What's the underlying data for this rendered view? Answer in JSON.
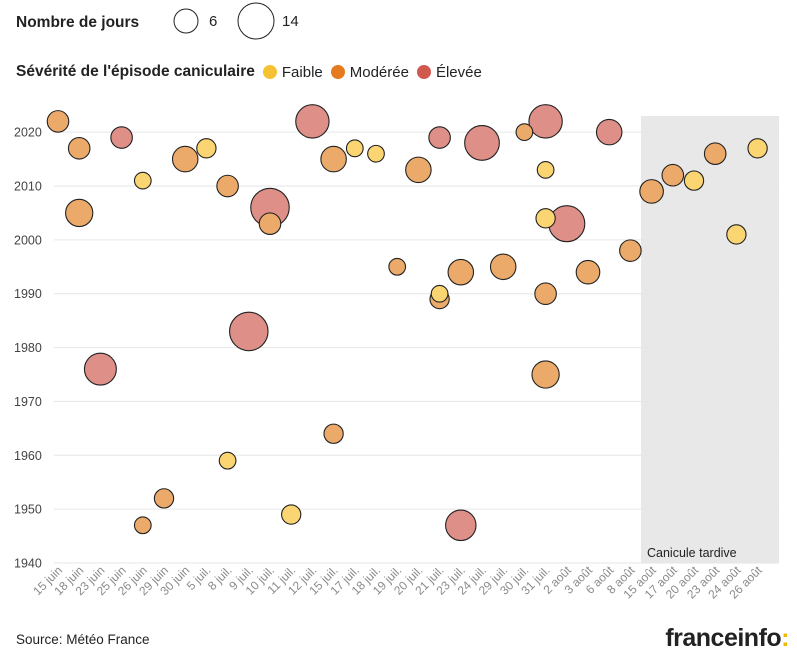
{
  "legend_size": {
    "title": "Nombre de jours",
    "small_label": "6",
    "small_value": 6,
    "large_label": "14",
    "large_value": 14
  },
  "legend_severity": {
    "title": "Sévérité de l'épisode caniculaire",
    "items": [
      {
        "label": "Faible",
        "color": "#f6c233"
      },
      {
        "label": "Modérée",
        "color": "#e57b1e"
      },
      {
        "label": "Élevée",
        "color": "#d1584e"
      }
    ]
  },
  "colors": {
    "Faible": "#fcd573",
    "Modérée": "#ecaa6a",
    "Élevée": "#dd8f88",
    "stroke": "#222222",
    "grid": "#e6e6e6",
    "shade": "#e8e8e8"
  },
  "source": "Source: Météo France",
  "brand": {
    "text": "franceinfo",
    "mark": ":"
  },
  "chart_data": {
    "type": "scatter",
    "title": "",
    "xlabel": "",
    "ylabel": "",
    "categories": [
      "15 juin",
      "18 juin",
      "23 juin",
      "25 juin",
      "26 juin",
      "29 juin",
      "30 juin",
      "5 juil.",
      "8 juil.",
      "9 juil.",
      "10 juil.",
      "11 juil.",
      "12 juil.",
      "15 juil.",
      "17 juil.",
      "18 juil.",
      "19 juil.",
      "20 juil.",
      "21 juil.",
      "23 juil.",
      "24 juil.",
      "29 juil.",
      "30 juil.",
      "31 juil.",
      "2 août",
      "3 août",
      "6 août",
      "8 août",
      "15 août",
      "17 août",
      "20 août",
      "23 août",
      "24 août",
      "26 août"
    ],
    "ylim": [
      1940,
      2023
    ],
    "yticks": [
      1940,
      1950,
      1960,
      1970,
      1980,
      1990,
      2000,
      2010,
      2020
    ],
    "shaded_region": {
      "from": "15 août",
      "to": "26 août",
      "label": "Canicule tardive"
    },
    "points": [
      {
        "x": "15 juin",
        "year": 2022,
        "days": 5,
        "severity": "Modérée"
      },
      {
        "x": "18 juin",
        "year": 2017,
        "days": 5,
        "severity": "Modérée"
      },
      {
        "x": "18 juin",
        "year": 2005,
        "days": 8,
        "severity": "Modérée"
      },
      {
        "x": "23 juin",
        "year": 1976,
        "days": 11,
        "severity": "Élevée"
      },
      {
        "x": "25 juin",
        "year": 2019,
        "days": 5,
        "severity": "Élevée"
      },
      {
        "x": "26 juin",
        "year": 2011,
        "days": 3,
        "severity": "Faible"
      },
      {
        "x": "26 juin",
        "year": 1947,
        "days": 3,
        "severity": "Modérée"
      },
      {
        "x": "29 juin",
        "year": 1952,
        "days": 4,
        "severity": "Modérée"
      },
      {
        "x": "30 juin",
        "year": 2015,
        "days": 7,
        "severity": "Modérée"
      },
      {
        "x": "5 juil.",
        "year": 2017,
        "days": 4,
        "severity": "Faible"
      },
      {
        "x": "8 juil.",
        "year": 2010,
        "days": 5,
        "severity": "Modérée"
      },
      {
        "x": "8 juil.",
        "year": 1959,
        "days": 3,
        "severity": "Faible"
      },
      {
        "x": "9 juil.",
        "year": 1983,
        "days": 16,
        "severity": "Élevée"
      },
      {
        "x": "10 juil.",
        "year": 2006,
        "days": 16,
        "severity": "Élevée"
      },
      {
        "x": "10 juil.",
        "year": 2003,
        "days": 5,
        "severity": "Modérée"
      },
      {
        "x": "11 juil.",
        "year": 1949,
        "days": 4,
        "severity": "Faible"
      },
      {
        "x": "12 juil.",
        "year": 2022,
        "days": 12,
        "severity": "Élevée"
      },
      {
        "x": "15 juil.",
        "year": 2015,
        "days": 7,
        "severity": "Modérée"
      },
      {
        "x": "15 juil.",
        "year": 1964,
        "days": 4,
        "severity": "Modérée"
      },
      {
        "x": "17 juil.",
        "year": 2017,
        "days": 3,
        "severity": "Faible"
      },
      {
        "x": "18 juil.",
        "year": 2016,
        "days": 3,
        "severity": "Faible"
      },
      {
        "x": "19 juil.",
        "year": 1995,
        "days": 3,
        "severity": "Modérée"
      },
      {
        "x": "20 juil.",
        "year": 2013,
        "days": 7,
        "severity": "Modérée"
      },
      {
        "x": "21 juil.",
        "year": 2019,
        "days": 5,
        "severity": "Élevée"
      },
      {
        "x": "21 juil.",
        "year": 1990,
        "days": 3,
        "severity": "Faible"
      },
      {
        "x": "21 juil.",
        "year": 1989,
        "days": 4,
        "severity": "Modérée"
      },
      {
        "x": "23 juil.",
        "year": 1994,
        "days": 7,
        "severity": "Modérée"
      },
      {
        "x": "23 juil.",
        "year": 1947,
        "days": 10,
        "severity": "Élevée"
      },
      {
        "x": "24 juil.",
        "year": 2018,
        "days": 13,
        "severity": "Élevée"
      },
      {
        "x": "29 juil.",
        "year": 1995,
        "days": 7,
        "severity": "Modérée"
      },
      {
        "x": "30 juil.",
        "year": 2020,
        "days": 3,
        "severity": "Modérée"
      },
      {
        "x": "31 juil.",
        "year": 2022,
        "days": 12,
        "severity": "Élevée"
      },
      {
        "x": "31 juil.",
        "year": 2013,
        "days": 3,
        "severity": "Faible"
      },
      {
        "x": "31 juil.",
        "year": 2004,
        "days": 4,
        "severity": "Faible"
      },
      {
        "x": "31 juil.",
        "year": 1990,
        "days": 5,
        "severity": "Modérée"
      },
      {
        "x": "31 juil.",
        "year": 1975,
        "days": 8,
        "severity": "Modérée"
      },
      {
        "x": "2 août",
        "year": 2003,
        "days": 14,
        "severity": "Élevée"
      },
      {
        "x": "3 août",
        "year": 1994,
        "days": 6,
        "severity": "Modérée"
      },
      {
        "x": "6 août",
        "year": 2020,
        "days": 7,
        "severity": "Élevée"
      },
      {
        "x": "8 août",
        "year": 1998,
        "days": 5,
        "severity": "Modérée"
      },
      {
        "x": "15 août",
        "year": 2009,
        "days": 6,
        "severity": "Modérée"
      },
      {
        "x": "17 août",
        "year": 2012,
        "days": 5,
        "severity": "Modérée"
      },
      {
        "x": "20 août",
        "year": 2011,
        "days": 4,
        "severity": "Faible"
      },
      {
        "x": "23 août",
        "year": 2016,
        "days": 5,
        "severity": "Modérée"
      },
      {
        "x": "24 août",
        "year": 2001,
        "days": 4,
        "severity": "Faible"
      },
      {
        "x": "26 août",
        "year": 2017,
        "days": 4,
        "severity": "Faible"
      }
    ]
  }
}
